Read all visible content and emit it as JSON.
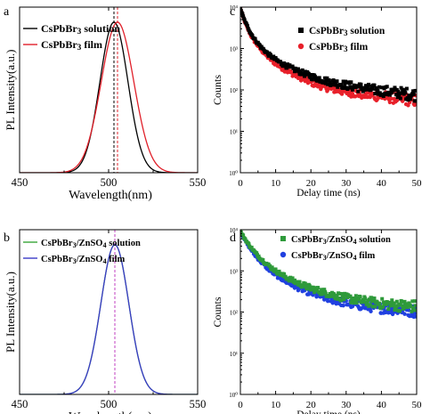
{
  "chart_data": [
    {
      "panel": "a",
      "type": "line",
      "xlabel": "Wavelength(nm)",
      "ylabel": "PL Intensity(a.u.)",
      "xlim": [
        450,
        550
      ],
      "xticks": [
        "450",
        "500",
        "550"
      ],
      "ylim": [
        0,
        1.1
      ],
      "legend_position": "top-left",
      "series": [
        {
          "name": "CsPbBr3 solution",
          "color": "#000000",
          "peak": 503,
          "fwhm": 18.5
        },
        {
          "name": "CsPbBr3 film",
          "color": "#e0202a",
          "peak": 505,
          "fwhm": 21.5
        }
      ],
      "vlines": [
        {
          "x": 503,
          "color": "#000000",
          "style": "dashed"
        },
        {
          "x": 505,
          "color": "#e0202a",
          "style": "dashed"
        }
      ]
    },
    {
      "panel": "b",
      "type": "line",
      "xlabel": "Wavelength(nm)",
      "ylabel": "PL Intensity(a.u.)",
      "xlim": [
        450,
        550
      ],
      "xticks": [
        "450",
        "500",
        "550"
      ],
      "ylim": [
        0,
        1.1
      ],
      "legend_position": "top-left",
      "series": [
        {
          "name": "CsPbBr3/ZnSO4 solution",
          "color": "#39a639",
          "peak": 503.5,
          "fwhm": 18.5
        },
        {
          "name": "CsPbBr3/ZnSO4 film",
          "color": "#3a3ac8",
          "peak": 503.5,
          "fwhm": 18.5
        }
      ],
      "vlines": [
        {
          "x": 503.5,
          "color": "#c040c0",
          "style": "dashed"
        }
      ]
    },
    {
      "panel": "c",
      "type": "scatter",
      "xlabel": "Delay time (ns)",
      "ylabel": "Counts",
      "xlim": [
        0,
        50
      ],
      "xticks": [
        "0",
        "10",
        "20",
        "30",
        "40",
        "50"
      ],
      "yscale": "log",
      "ylim_log10": [
        0,
        4
      ],
      "yticks": [
        "10⁰",
        "10¹",
        "10²",
        "10³",
        "10⁴"
      ],
      "legend_position": "top-right",
      "series": [
        {
          "name": "CsPbBr3 solution",
          "color": "#000000",
          "marker": "square",
          "x": [
            0,
            1,
            2,
            3,
            4,
            6,
            8,
            10,
            12,
            15,
            18,
            21,
            25,
            30,
            35,
            40,
            45,
            50
          ],
          "y": [
            9500,
            5200,
            3400,
            2300,
            1700,
            1050,
            720,
            540,
            420,
            320,
            250,
            200,
            160,
            130,
            110,
            95,
            85,
            75
          ]
        },
        {
          "name": "CsPbBr3 film",
          "color": "#e8202a",
          "marker": "circle",
          "x": [
            0,
            1,
            2,
            3,
            4,
            6,
            8,
            10,
            12,
            15,
            18,
            21,
            25,
            30,
            35,
            40,
            45,
            50
          ],
          "y": [
            9500,
            5000,
            3100,
            2050,
            1500,
            900,
            600,
            430,
            330,
            240,
            180,
            140,
            110,
            90,
            78,
            70,
            62,
            55
          ]
        }
      ]
    },
    {
      "panel": "d",
      "type": "scatter",
      "xlabel": "Delay time (ns)",
      "ylabel": "Counts",
      "xlim": [
        0,
        50
      ],
      "xticks": [
        "0",
        "10",
        "20",
        "30",
        "40",
        "50"
      ],
      "yscale": "log",
      "ylim_log10": [
        0,
        4
      ],
      "yticks": [
        "10⁰",
        "10¹",
        "10²",
        "10³",
        "10⁴"
      ],
      "legend_position": "top-right",
      "series": [
        {
          "name": "CsPbBr3/ZnSO4 solution",
          "color": "#2e9a3a",
          "marker": "square",
          "x": [
            0,
            2,
            4,
            6,
            8,
            10,
            13,
            16,
            20,
            25,
            30,
            35,
            40,
            45,
            50
          ],
          "y": [
            9000,
            4800,
            2900,
            1900,
            1350,
            1000,
            700,
            520,
            380,
            280,
            220,
            185,
            160,
            145,
            135
          ]
        },
        {
          "name": "CsPbBr3/ZnSO4 film",
          "color": "#2040e0",
          "marker": "circle",
          "x": [
            0,
            2,
            4,
            6,
            8,
            10,
            13,
            16,
            20,
            25,
            30,
            35,
            40,
            45,
            50
          ],
          "y": [
            9000,
            4400,
            2500,
            1600,
            1100,
            800,
            550,
            400,
            290,
            210,
            165,
            140,
            125,
            115,
            105
          ]
        }
      ]
    }
  ]
}
